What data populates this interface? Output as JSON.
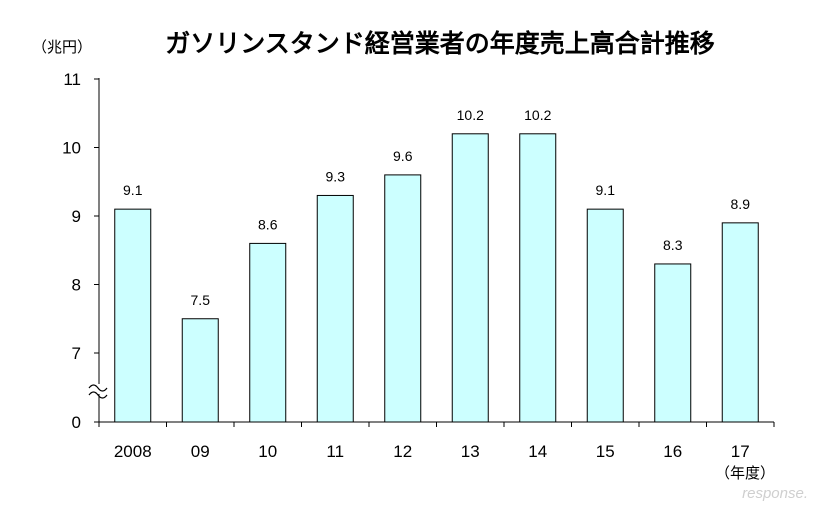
{
  "chart_data": {
    "type": "bar",
    "title": "ガソリンスタンド経営業者の年度売上高合計推移",
    "ylabel": "（兆円）",
    "xlabel": "（年度）",
    "categories": [
      "2008",
      "09",
      "10",
      "11",
      "12",
      "13",
      "14",
      "15",
      "16",
      "17"
    ],
    "values": [
      9.1,
      7.5,
      8.6,
      9.3,
      9.6,
      10.2,
      10.2,
      9.1,
      8.3,
      8.9
    ],
    "value_labels": [
      "9.1",
      "7.5",
      "8.6",
      "9.3",
      "9.6",
      "10.2",
      "10.2",
      "9.1",
      "8.3",
      "8.9"
    ],
    "y_ticks": [
      "0",
      "7",
      "8",
      "9",
      "10",
      "11"
    ],
    "ylim": [
      6.5,
      11
    ],
    "axis_break": true,
    "grid": false,
    "legend": "none",
    "colors": {
      "bar_fill": "#ccffff",
      "bar_stroke": "#000000"
    }
  },
  "watermark": "response."
}
